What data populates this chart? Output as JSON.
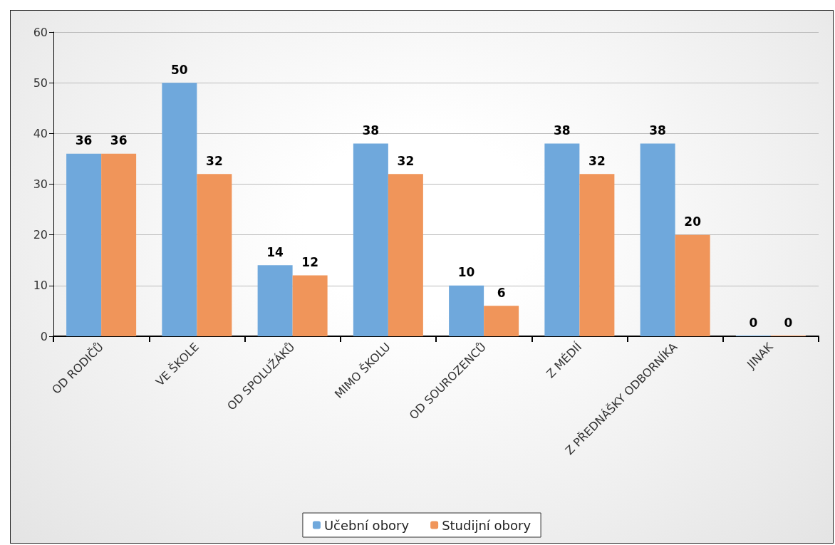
{
  "chart_data": {
    "type": "bar",
    "categories": [
      "OD RODIČŮ",
      "VE ŠKOLE",
      "OD SPOLUŽÁKŮ",
      "MIMO ŠKOLU",
      "OD SOUROZENCŮ",
      "Z MÉDIÍ",
      "Z PŘEDNÁŠKY ODBORNÍKA",
      "JINAK"
    ],
    "series": [
      {
        "name": "Učební obory",
        "color": "#6fa8dc",
        "values": [
          36,
          50,
          14,
          38,
          10,
          38,
          38,
          0
        ]
      },
      {
        "name": "Studijní obory",
        "color": "#f0955a",
        "values": [
          36,
          32,
          12,
          32,
          6,
          32,
          20,
          0
        ]
      }
    ],
    "ylim": [
      0,
      60
    ],
    "yticks": [
      0,
      10,
      20,
      30,
      40,
      50,
      60
    ],
    "grid": "y",
    "legend": "bottom",
    "data_labels": true
  }
}
